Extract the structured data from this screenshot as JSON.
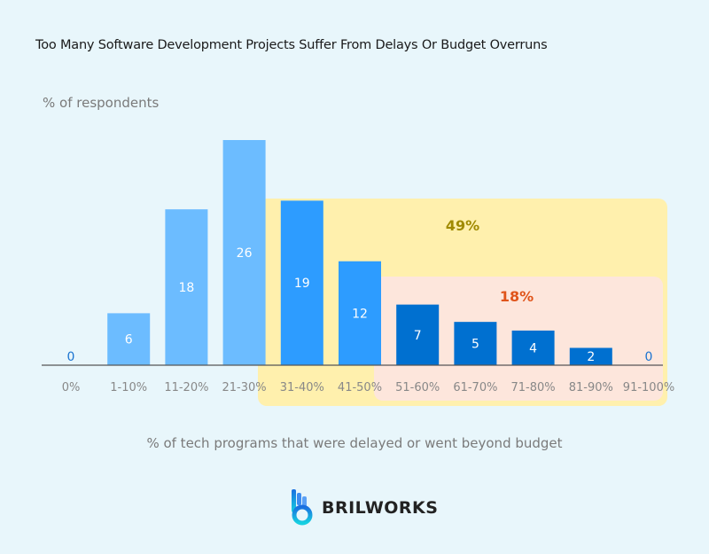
{
  "chart_data": {
    "type": "bar",
    "title": "Too Many Software Development Projects Suffer From Delays Or Budget Overruns",
    "ylabel": "% of respondents",
    "xlabel": "% of  tech programs that were delayed or went beyond budget",
    "categories": [
      "0%",
      "1-10%",
      "11-20%",
      "21-30%",
      "31-40%",
      "41-50%",
      "51-60%",
      "61-70%",
      "71-80%",
      "81-90%",
      "91-100%"
    ],
    "values": [
      0,
      6,
      18,
      26,
      19,
      12,
      7,
      5,
      4,
      2,
      0
    ],
    "ylim": [
      0,
      26
    ],
    "grid": false,
    "colors": {
      "light": "#6cbcff",
      "medium": "#2d9cff",
      "dark": "#0070d0",
      "zero_label": "#1a73d0",
      "highlight_49_bg": "#fff0ad",
      "highlight_18_bg": "#fde6dc",
      "label_49": "#a08a00",
      "label_18": "#e0541a"
    },
    "bar_color_groups": [
      "light",
      "light",
      "light",
      "light",
      "medium",
      "medium",
      "dark",
      "dark",
      "dark",
      "dark",
      "dark"
    ],
    "annotations": [
      {
        "text": "49%",
        "range": [
          "31-40%",
          "91-100%"
        ]
      },
      {
        "text": "18%",
        "range": [
          "51-60%",
          "91-100%"
        ]
      }
    ]
  },
  "brand": {
    "name": "BRILWORKS"
  }
}
